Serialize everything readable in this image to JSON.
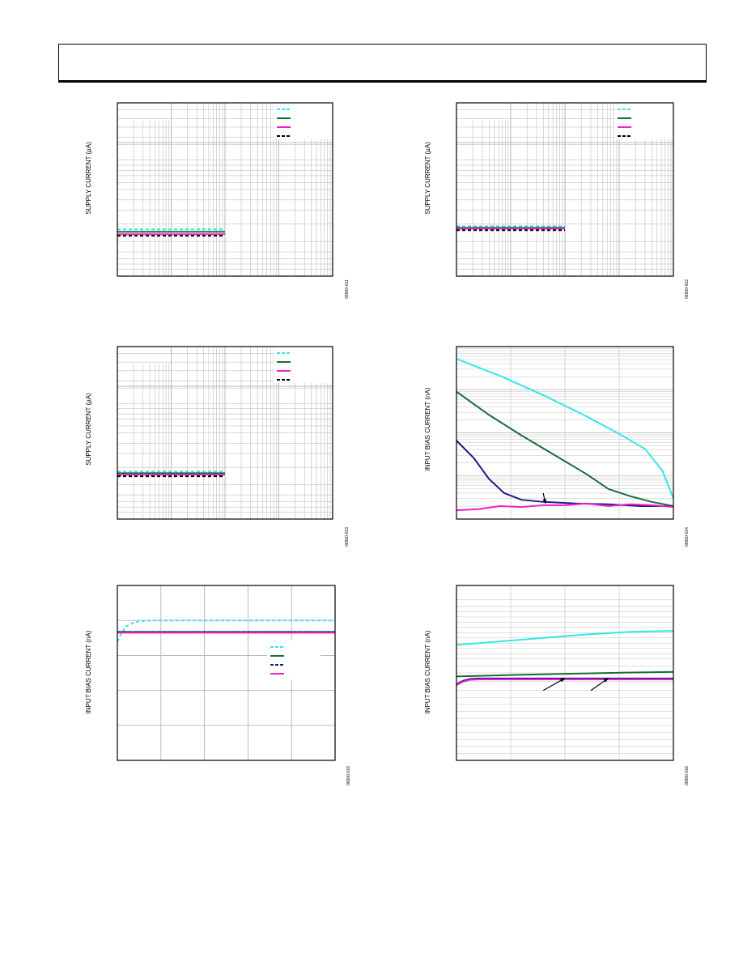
{
  "colors": {
    "cyan": "#33e6e6",
    "green": "#1a6b3a",
    "magenta": "#ee22cc",
    "navy": "#1a1a8c",
    "black": "#000000",
    "grid": "#b3b3b3"
  },
  "chart_data": [
    {
      "type": "line",
      "ylabel": "SUPPLY CURRENT (µA)",
      "fig_id": "06500-011",
      "x_scale": "log",
      "grid": true,
      "legend_position": "top-right",
      "xlim": [
        0.001,
        10
      ],
      "ylim": [
        0,
        100
      ],
      "series": [
        {
          "color": "cyan",
          "style": "dashed",
          "x": [
            0.001,
            0.1
          ],
          "y": [
            27,
            27
          ]
        },
        {
          "color": "green",
          "style": "solid",
          "x": [
            0.001,
            0.1
          ],
          "y": [
            25.6,
            25.6
          ]
        },
        {
          "color": "magenta",
          "style": "solid",
          "x": [
            0.001,
            0.1
          ],
          "y": [
            24.2,
            24.2
          ]
        },
        {
          "color": "black",
          "style": "dashed",
          "x": [
            0.001,
            0.1
          ],
          "y": [
            23.3,
            23.3
          ]
        }
      ]
    },
    {
      "type": "line",
      "ylabel": "SUPPLY CURRENT (µA)",
      "fig_id": "06500-012",
      "x_scale": "log",
      "grid": true,
      "legend_position": "top-right",
      "xlim": [
        0.001,
        10
      ],
      "ylim": [
        0,
        100
      ],
      "series": [
        {
          "color": "cyan",
          "style": "dashed",
          "x": [
            0.001,
            0.1
          ],
          "y": [
            28.8,
            28.8
          ]
        },
        {
          "color": "green",
          "style": "solid",
          "x": [
            0.001,
            0.1
          ],
          "y": [
            27.9,
            27.9
          ]
        },
        {
          "color": "magenta",
          "style": "solid",
          "x": [
            0.001,
            0.1
          ],
          "y": [
            27.4,
            27.4
          ]
        },
        {
          "color": "black",
          "style": "dashed",
          "x": [
            0.001,
            0.1
          ],
          "y": [
            26.5,
            26.5
          ]
        }
      ]
    },
    {
      "type": "line",
      "ylabel": "SUPPLY CURRENT (µA)",
      "fig_id": "06500-013",
      "x_scale": "log",
      "grid": true,
      "legend_position": "top-right",
      "xlim": [
        0.001,
        10
      ],
      "ylim": [
        0,
        100
      ],
      "series": [
        {
          "color": "cyan",
          "style": "dashed",
          "x": [
            0.001,
            0.1
          ],
          "y": [
            27.5,
            27.5
          ]
        },
        {
          "color": "green",
          "style": "solid",
          "x": [
            0.001,
            0.1
          ],
          "y": [
            26.6,
            26.6
          ]
        },
        {
          "color": "magenta",
          "style": "solid",
          "x": [
            0.001,
            0.1
          ],
          "y": [
            25.7,
            25.7
          ]
        },
        {
          "color": "black",
          "style": "dashed",
          "x": [
            0.001,
            0.1
          ],
          "y": [
            24.8,
            24.8
          ]
        }
      ]
    },
    {
      "type": "line",
      "ylabel": "INPUT BIAS CURRENT (nA)",
      "fig_id": "06500-014",
      "y_scale": "log",
      "grid": true,
      "xlim": [
        0,
        100
      ],
      "ylim": [
        0.1,
        1000
      ],
      "series": [
        {
          "color": "cyan",
          "style": "solid",
          "x": [
            0,
            20,
            40,
            60,
            75,
            87,
            95,
            100
          ],
          "y": [
            520,
            210,
            75,
            24,
            9.5,
            4.2,
            1.3,
            0.3
          ]
        },
        {
          "color": "green",
          "style": "solid",
          "x": [
            0,
            15,
            30,
            45,
            60,
            70,
            80,
            90,
            100
          ],
          "y": [
            90,
            26,
            8.7,
            3.1,
            1.1,
            0.5,
            0.34,
            0.25,
            0.2
          ]
        },
        {
          "color": "navy",
          "style": "solid",
          "x": [
            0,
            8,
            15,
            22,
            30,
            40,
            55,
            70,
            85,
            100
          ],
          "y": [
            6.6,
            2.6,
            0.85,
            0.4,
            0.28,
            0.25,
            0.23,
            0.22,
            0.2,
            0.2
          ]
        },
        {
          "color": "magenta",
          "style": "solid",
          "x": [
            0,
            10,
            20,
            30,
            40,
            50,
            60,
            70,
            80,
            90,
            100
          ],
          "y": [
            0.16,
            0.17,
            0.2,
            0.19,
            0.21,
            0.21,
            0.23,
            0.2,
            0.22,
            0.21,
            0.19
          ]
        }
      ],
      "annotations": [
        {
          "type": "arrow",
          "x": 41,
          "y": 0.23,
          "from_x": 40,
          "from_y": 0.4
        }
      ]
    },
    {
      "type": "line",
      "ylabel": "INPUT BIAS CURRENT (nA)",
      "fig_id": "06500-015",
      "grid": true,
      "legend_position": "center-right",
      "xlim": [
        0,
        100
      ],
      "ylim": [
        0,
        100
      ],
      "series": [
        {
          "color": "cyan",
          "style": "dashed",
          "x": [
            0,
            2,
            4,
            7,
            10,
            15,
            20,
            100
          ],
          "y": [
            68,
            73,
            76.5,
            78.5,
            79.5,
            80,
            80,
            80
          ]
        },
        {
          "color": "green",
          "style": "solid",
          "x": [
            0,
            100
          ],
          "y": [
            73.5,
            73.5
          ]
        },
        {
          "color": "navy",
          "style": "dashed",
          "x": [
            0,
            100
          ],
          "y": [
            73.3,
            73.3
          ]
        },
        {
          "color": "magenta",
          "style": "solid",
          "x": [
            0,
            100
          ],
          "y": [
            73,
            73
          ]
        }
      ]
    },
    {
      "type": "line",
      "ylabel": "INPUT BIAS CURRENT (nA)",
      "fig_id": "06500-016",
      "grid": true,
      "xlim": [
        0,
        100
      ],
      "ylim": [
        0,
        100
      ],
      "series": [
        {
          "color": "cyan",
          "style": "solid",
          "x": [
            0,
            20,
            40,
            60,
            80,
            100
          ],
          "y": [
            66,
            68,
            70,
            72,
            73.5,
            74
          ]
        },
        {
          "color": "green",
          "style": "solid",
          "x": [
            0,
            25,
            50,
            75,
            100
          ],
          "y": [
            48,
            48.8,
            49.5,
            50.1,
            50.6
          ]
        },
        {
          "color": "navy",
          "style": "solid",
          "x": [
            0,
            3,
            6,
            10,
            100
          ],
          "y": [
            43.5,
            45.5,
            46.5,
            46.8,
            46.8
          ]
        },
        {
          "color": "magenta",
          "style": "solid",
          "x": [
            0,
            3,
            6,
            10,
            100
          ],
          "y": [
            43,
            45,
            46,
            46.3,
            46.3
          ]
        }
      ],
      "annotations": [
        {
          "type": "arrow",
          "x": 50,
          "y": 47,
          "from_x": 40,
          "from_y": 40
        },
        {
          "type": "arrow",
          "x": 70,
          "y": 47,
          "from_x": 62,
          "from_y": 40
        }
      ]
    }
  ]
}
